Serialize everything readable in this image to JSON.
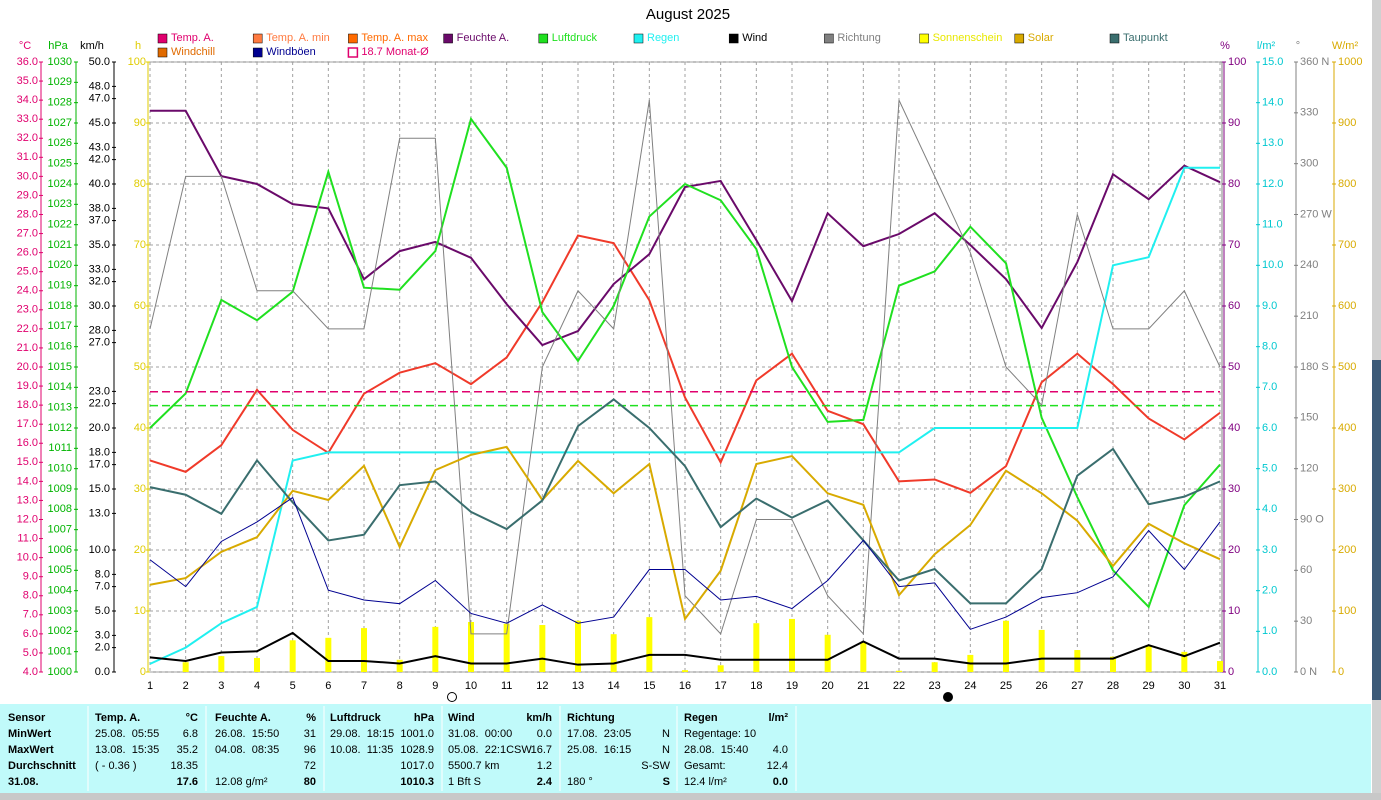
{
  "chart_data": {
    "type": "line",
    "title": "August 2025",
    "x": [
      1,
      2,
      3,
      4,
      5,
      6,
      7,
      8,
      9,
      10,
      11,
      12,
      13,
      14,
      15,
      16,
      17,
      18,
      19,
      20,
      21,
      22,
      23,
      24,
      25,
      26,
      27,
      28,
      29,
      30,
      31
    ],
    "xlim": [
      1,
      31
    ],
    "xticks": [
      1,
      2,
      3,
      4,
      5,
      6,
      7,
      8,
      9,
      10,
      11,
      12,
      13,
      14,
      15,
      16,
      17,
      18,
      19,
      20,
      21,
      22,
      23,
      24,
      25,
      26,
      27,
      28,
      29,
      30,
      31
    ],
    "axes": [
      {
        "label": "°C",
        "side": "left",
        "color": "#e0006e",
        "lim": [
          4,
          36
        ],
        "ticks": [
          {
            "value": 4,
            "label": "4.0"
          },
          {
            "value": 5,
            "label": "5.0"
          },
          {
            "value": 6,
            "label": "6.0"
          },
          {
            "value": 7,
            "label": "7.0"
          },
          {
            "value": 8,
            "label": "8.0"
          },
          {
            "value": 9,
            "label": "9.0"
          },
          {
            "value": 10,
            "label": "10.0"
          },
          {
            "value": 11,
            "label": "11.0"
          },
          {
            "value": 12,
            "label": "12.0"
          },
          {
            "value": 13,
            "label": "13.0"
          },
          {
            "value": 14,
            "label": "14.0"
          },
          {
            "value": 15,
            "label": "15.0"
          },
          {
            "value": 16,
            "label": "16.0"
          },
          {
            "value": 17,
            "label": "17.0"
          },
          {
            "value": 18,
            "label": "18.0"
          },
          {
            "value": 19,
            "label": "19.0"
          },
          {
            "value": 20,
            "label": "20.0"
          },
          {
            "value": 21,
            "label": "21.0"
          },
          {
            "value": 22,
            "label": "22.0"
          },
          {
            "value": 23,
            "label": "23.0"
          },
          {
            "value": 24,
            "label": "24.0"
          },
          {
            "value": 25,
            "label": "25.0"
          },
          {
            "value": 26,
            "label": "26.0"
          },
          {
            "value": 27,
            "label": "27.0"
          },
          {
            "value": 28,
            "label": "28.0"
          },
          {
            "value": 29,
            "label": "29.0"
          },
          {
            "value": 30,
            "label": "30.0"
          },
          {
            "value": 31,
            "label": "31.0"
          },
          {
            "value": 32,
            "label": "32.0"
          },
          {
            "value": 33,
            "label": "33.0"
          },
          {
            "value": 34,
            "label": "34.0"
          },
          {
            "value": 35,
            "label": "35.0"
          },
          {
            "value": 36,
            "label": "36.0"
          }
        ]
      },
      {
        "label": "hPa",
        "side": "left",
        "color": "#00b400",
        "lim": [
          1000,
          1030
        ],
        "ticks": [
          1000,
          1001,
          1002,
          1003,
          1004,
          1005,
          1006,
          1007,
          1008,
          1009,
          1010,
          1011,
          1012,
          1013,
          1014,
          1015,
          1016,
          1017,
          1018,
          1019,
          1020,
          1021,
          1022,
          1023,
          1024,
          1025,
          1026,
          1027,
          1028,
          1029,
          1030
        ]
      },
      {
        "label": "km/h",
        "side": "left",
        "color": "#000000",
        "lim": [
          0,
          50
        ],
        "ticks": [
          {
            "value": 0,
            "label": "0.0"
          },
          {
            "value": 2,
            "label": "2.0"
          },
          {
            "value": 3,
            "label": "3.0"
          },
          {
            "value": 5,
            "label": "5.0"
          },
          {
            "value": 7,
            "label": "7.0"
          },
          {
            "value": 8,
            "label": "8.0"
          },
          {
            "value": 10,
            "label": "10.0"
          },
          {
            "value": 13,
            "label": "13.0"
          },
          {
            "value": 15,
            "label": "15.0"
          },
          {
            "value": 17,
            "label": "17.0"
          },
          {
            "value": 18,
            "label": "18.0"
          },
          {
            "value": 20,
            "label": "20.0"
          },
          {
            "value": 22,
            "label": "22.0"
          },
          {
            "value": 23,
            "label": "23.0"
          },
          {
            "value": 27,
            "label": "27.0"
          },
          {
            "value": 28,
            "label": "28.0"
          },
          {
            "value": 30,
            "label": "30.0"
          },
          {
            "value": 32,
            "label": "32.0"
          },
          {
            "value": 33,
            "label": "33.0"
          },
          {
            "value": 35,
            "label": "35.0"
          },
          {
            "value": 37,
            "label": "37.0"
          },
          {
            "value": 38,
            "label": "38.0"
          },
          {
            "value": 40,
            "label": "40.0"
          },
          {
            "value": 42,
            "label": "42.0"
          },
          {
            "value": 43,
            "label": "43.0"
          },
          {
            "value": 45,
            "label": "45.0"
          },
          {
            "value": 47,
            "label": "47.0"
          },
          {
            "value": 48,
            "label": "48.0"
          },
          {
            "value": 50,
            "label": "50.0"
          }
        ]
      },
      {
        "label": "h",
        "side": "left",
        "color": "#e0cc00",
        "lim": [
          0,
          100
        ],
        "grid": true,
        "ticks": [
          0,
          10,
          20,
          30,
          40,
          50,
          60,
          70,
          80,
          90,
          100
        ]
      },
      {
        "label": "%",
        "side": "right",
        "color": "#800080",
        "lim": [
          0,
          100
        ],
        "ticks": [
          0,
          10,
          20,
          30,
          40,
          50,
          60,
          70,
          80,
          90,
          100
        ]
      },
      {
        "label": "l/m²",
        "side": "right",
        "color": "#00c8d0",
        "lim": [
          0,
          15
        ],
        "ticks": [
          {
            "value": 0,
            "label": "0.0"
          },
          {
            "value": 1,
            "label": "1.0"
          },
          {
            "value": 2,
            "label": "2.0"
          },
          {
            "value": 3,
            "label": "3.0"
          },
          {
            "value": 4,
            "label": "4.0"
          },
          {
            "value": 5,
            "label": "5.0"
          },
          {
            "value": 6,
            "label": "6.0"
          },
          {
            "value": 7,
            "label": "7.0"
          },
          {
            "value": 8,
            "label": "8.0"
          },
          {
            "value": 9,
            "label": "9.0"
          },
          {
            "value": 10,
            "label": "10.0"
          },
          {
            "value": 11,
            "label": "11.0"
          },
          {
            "value": 12,
            "label": "12.0"
          },
          {
            "value": 13,
            "label": "13.0"
          },
          {
            "value": 14,
            "label": "14.0"
          },
          {
            "value": 15,
            "label": "15.0"
          }
        ]
      },
      {
        "label": "°",
        "side": "right",
        "color": "#808080",
        "lim": [
          0,
          360
        ],
        "ticks": [
          {
            "value": 0,
            "label": "0 N"
          },
          30,
          60,
          {
            "value": 90,
            "label": "90 O"
          },
          120,
          150,
          {
            "value": 180,
            "label": "180 S"
          },
          210,
          240,
          {
            "value": 270,
            "label": "270 W"
          },
          300,
          330,
          {
            "value": 360,
            "label": "360 N"
          }
        ]
      },
      {
        "label": "W/m²",
        "side": "right",
        "color": "#d8aa00",
        "lim": [
          0,
          1000
        ],
        "ticks": [
          0,
          100,
          200,
          300,
          400,
          500,
          600,
          700,
          800,
          900,
          1000
        ]
      }
    ],
    "series": [
      {
        "name": "Temp. A.",
        "color": "#e0006e",
        "line_color": "#f03a2a",
        "axis": "°C",
        "line_width": 2,
        "values": [
          15.1,
          14.5,
          15.9,
          18.8,
          16.7,
          15.5,
          18.6,
          19.7,
          20.2,
          19.1,
          20.5,
          23.4,
          26.9,
          26.5,
          23.5,
          18.4,
          15.0,
          19.3,
          20.7,
          17.7,
          17.0,
          14.0,
          14.1,
          13.4,
          14.8,
          19.2,
          20.7,
          19.1,
          17.3,
          16.2,
          17.6
        ]
      },
      {
        "name": "Temp. A. min",
        "color": "#ff7a40"
      },
      {
        "name": "Temp. A. max",
        "color": "#ff6a00"
      },
      {
        "name": "Feuchte A.",
        "color": "#6a0a6a",
        "axis": "%",
        "line_width": 2,
        "values": [
          92,
          92,
          81.3,
          80,
          76.7,
          76,
          64.4,
          69,
          70.5,
          67.9,
          60.3,
          53.6,
          55.9,
          63.6,
          68.5,
          79.5,
          80.5,
          70.8,
          60.8,
          75.2,
          69.8,
          71.8,
          75.2,
          70,
          64.4,
          56.4,
          67.2,
          81.6,
          77.5,
          83,
          80.3
        ]
      },
      {
        "name": "Luftdruck",
        "color": "#20e020",
        "axis": "hPa",
        "line_width": 2,
        "level": 1013.1,
        "values": [
          1012.0,
          1013.7,
          1018.3,
          1017.3,
          1018.7,
          1024.6,
          1018.9,
          1018.8,
          1020.7,
          1027.2,
          1024.8,
          1017.7,
          1015.3,
          1018.0,
          1022.4,
          1024.0,
          1023.2,
          1020.8,
          1015.0,
          1012.3,
          1012.4,
          1019.0,
          1019.7,
          1021.9,
          1020.1,
          1012.5,
          1008.6,
          1005.0,
          1003.2,
          1008.2,
          1010.2
        ]
      },
      {
        "name": "Regen",
        "color": "#20f0f0",
        "axis": "l/m²",
        "line_width": 2,
        "values": [
          0.2,
          0.6,
          1.2,
          1.6,
          5.2,
          5.4,
          5.4,
          5.4,
          5.4,
          5.4,
          5.4,
          5.4,
          5.4,
          5.4,
          5.4,
          5.4,
          5.4,
          5.4,
          5.4,
          5.4,
          5.4,
          5.4,
          6.0,
          6.0,
          6.0,
          6.0,
          6.0,
          10.0,
          10.2,
          12.4,
          12.4
        ]
      },
      {
        "name": "Wind",
        "color": "#000000",
        "axis": "km/h",
        "line_width": 2,
        "values": [
          1.2,
          0.9,
          1.6,
          1.7,
          3.2,
          0.9,
          0.9,
          0.7,
          1.3,
          0.7,
          0.7,
          1.1,
          0.6,
          0.7,
          1.4,
          1.4,
          1.0,
          1.0,
          1.0,
          1.0,
          2.5,
          1.1,
          1.1,
          0.7,
          0.7,
          1.1,
          1.1,
          1.1,
          2.2,
          1.3,
          2.4
        ]
      },
      {
        "name": "Richtung",
        "color": "#808080",
        "axis": "°",
        "line_width": 1,
        "values": [
          202.5,
          292.5,
          292.5,
          225,
          225,
          202.5,
          202.5,
          315,
          315,
          22.5,
          22.5,
          180,
          225,
          202.5,
          337.5,
          45,
          22.5,
          90,
          90,
          45,
          22.5,
          337.5,
          292.5,
          247.5,
          180,
          157.5,
          270,
          202.5,
          202.5,
          225,
          180
        ]
      },
      {
        "name": "Sonnenschein",
        "color": "#ffff00",
        "axis": "h",
        "type": "bar",
        "values": [
          0,
          1.6,
          2.6,
          2.3,
          5.2,
          5.6,
          7.2,
          2.0,
          7.4,
          8.2,
          7.9,
          7.7,
          8.4,
          6.2,
          9.0,
          0.3,
          1.1,
          8.0,
          8.7,
          6.1,
          4.9,
          0.2,
          1.6,
          2.8,
          8.4,
          6.9,
          3.6,
          2.5,
          4.4,
          3.3,
          1.8
        ]
      },
      {
        "name": "Solar",
        "color": "#d8aa00",
        "axis": "W/m²",
        "line_width": 2,
        "values": [
          143,
          154,
          197,
          221,
          297,
          282,
          338,
          205,
          331,
          356,
          369,
          282,
          346,
          293,
          341,
          87,
          166,
          341,
          354,
          293,
          274,
          126,
          193,
          241,
          330,
          293,
          248,
          174,
          243,
          211,
          185
        ]
      },
      {
        "name": "Taupunkt",
        "color": "#3a6e6e",
        "axis": "°C",
        "line_width": 2,
        "values": [
          13.7,
          13.3,
          12.3,
          15.1,
          12.9,
          10.9,
          11.2,
          13.8,
          14.0,
          12.4,
          11.5,
          13.0,
          16.9,
          18.3,
          16.8,
          14.8,
          11.6,
          13.1,
          12.1,
          13.0,
          10.9,
          8.8,
          9.4,
          7.6,
          7.6,
          9.4,
          14.3,
          15.7,
          12.8,
          13.2,
          14.0
        ]
      },
      {
        "name": "Windchill",
        "color": "#e06a00"
      },
      {
        "name": "Windböen",
        "color": "#000090",
        "axis": "km/h",
        "line_width": 1,
        "values": [
          9.2,
          7.0,
          10.7,
          12.3,
          14.3,
          6.7,
          5.9,
          5.6,
          7.5,
          4.8,
          4.0,
          5.5,
          4.0,
          4.5,
          8.4,
          8.4,
          5.9,
          6.2,
          5.2,
          7.5,
          10.8,
          7.0,
          7.3,
          3.5,
          4.5,
          6.1,
          6.5,
          7.8,
          11.6,
          8.4,
          12.3
        ]
      },
      {
        "name": "18.7 Monat-Ø",
        "color": "#e0006e",
        "axis": "°C",
        "level": 18.7
      }
    ]
  },
  "table": {
    "columns": [
      {
        "title": "Sensor",
        "rows": [
          [
            "MinWert"
          ],
          [
            "MaxWert"
          ],
          [
            "Durchschnitt"
          ],
          [
            "31.08."
          ]
        ]
      },
      {
        "title": "Temp. A.",
        "unit": "°C",
        "rows": [
          [
            "25.08.  05:55",
            "6.8"
          ],
          [
            "13.08.  15:35",
            "35.2"
          ],
          [
            "( - 0.36 )",
            "18.35"
          ],
          [
            null,
            "17.6"
          ]
        ]
      },
      {
        "title": "Feuchte A.",
        "unit": "%",
        "rows": [
          [
            "26.08.  15:50",
            "31"
          ],
          [
            "04.08.  08:35",
            "96"
          ],
          [
            null,
            "72"
          ],
          [
            "12.08 g/m²",
            "80"
          ]
        ]
      },
      {
        "title": "Luftdruck",
        "unit": "hPa",
        "rows": [
          [
            "29.08.  18:15",
            "1001.0"
          ],
          [
            "10.08.  11:35",
            "1028.9"
          ],
          [
            null,
            "1017.0"
          ],
          [
            null,
            "1010.3"
          ]
        ]
      },
      {
        "title": "Wind",
        "unit": "km/h",
        "rows": [
          [
            "31.08.  00:00",
            "0.0"
          ],
          [
            "05.08.  22:1CSW",
            "16.7"
          ],
          [
            "5500.7 km",
            "1.2"
          ],
          [
            "1 Bft S",
            "2.4"
          ]
        ]
      },
      {
        "title": "Richtung",
        "rows": [
          [
            "17.08.  23:05",
            "N"
          ],
          [
            "25.08.  16:15",
            "N"
          ],
          [
            null,
            "S-SW"
          ],
          [
            "180 °",
            "S"
          ]
        ]
      },
      {
        "title": "Regen",
        "unit": "l/m²",
        "rows": [
          [
            "Regentage: 10",
            null
          ],
          [
            "28.08.  15:40",
            "4.0"
          ],
          [
            "Gesamt:",
            "12.4"
          ],
          [
            "12.4 l/m²",
            "0.0"
          ]
        ]
      }
    ]
  }
}
